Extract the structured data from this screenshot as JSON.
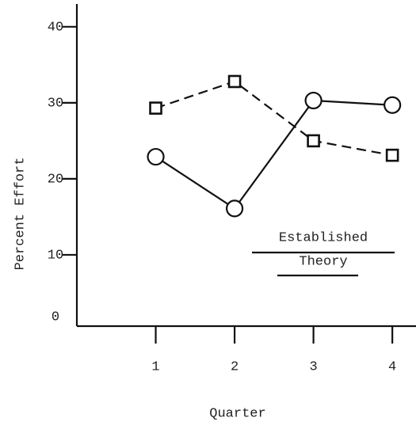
{
  "chart_data": {
    "type": "line",
    "x": [
      1,
      2,
      3,
      4
    ],
    "series": [
      {
        "color": "#111",
        "marker": "circle",
        "dashed": false,
        "values": [
          22.9,
          16.1,
          30.3,
          29.7
        ]
      },
      {
        "color": "#111",
        "marker": "square",
        "dashed": true,
        "values": [
          29.3,
          32.8,
          25.0,
          23.1
        ]
      }
    ],
    "xlim": [
      0,
      4.3
    ],
    "xticks": [
      1,
      2,
      3,
      4
    ],
    "ylim": [
      0,
      43
    ],
    "yticks": [
      0,
      10,
      20,
      30,
      40
    ],
    "xlabel": "Quarter",
    "ylabel": "Percent Effort",
    "annotation": [
      "Established",
      "Theory"
    ]
  }
}
